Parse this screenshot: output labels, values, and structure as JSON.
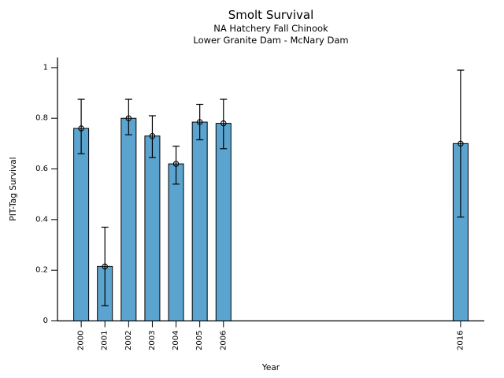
{
  "figure": {
    "title": "Smolt Survival",
    "subtitles": [
      "NA Hatchery Fall Chinook",
      "Lower Granite Dam - McNary Dam"
    ]
  },
  "chart_data": {
    "type": "bar",
    "title": "Smolt Survival",
    "subtitles": [
      "NA Hatchery Fall Chinook",
      "Lower Granite Dam - McNary Dam"
    ],
    "xlabel": "Year",
    "ylabel": "PIT-Tag Survival",
    "categories": [
      2000,
      2001,
      2002,
      2003,
      2004,
      2005,
      2006,
      2016
    ],
    "values": [
      0.76,
      0.215,
      0.8,
      0.73,
      0.62,
      0.785,
      0.78,
      0.7
    ],
    "error_low": [
      0.66,
      0.06,
      0.735,
      0.645,
      0.54,
      0.715,
      0.68,
      0.41
    ],
    "error_high": [
      0.875,
      0.37,
      0.875,
      0.81,
      0.69,
      0.855,
      0.875,
      0.99
    ],
    "marker": "open-circle",
    "xlim": [
      1999,
      2017
    ],
    "ylim": [
      0,
      1.04
    ],
    "yticks": [
      0,
      0.2,
      0.4,
      0.6,
      0.8,
      1
    ],
    "ytick_labels": [
      "0",
      "0.2",
      "0.4",
      "0.6",
      "0.8",
      "1"
    ],
    "x_tick_rotation": 90,
    "grid": false,
    "legend": "none",
    "bar_color": "#5BA4CF",
    "bar_edge_color": "#000000",
    "error_color": "#000000",
    "axis_color": "#000000"
  }
}
